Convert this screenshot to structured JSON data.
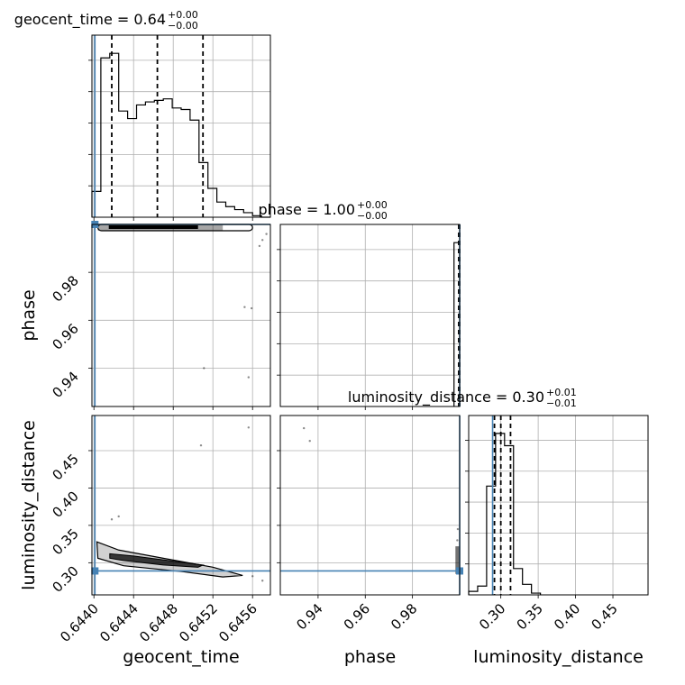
{
  "chart_data": {
    "type": "corner",
    "parameters": [
      "geocent_time",
      "phase",
      "luminosity_distance"
    ],
    "titles": {
      "geocent_time": {
        "label": "geocent_time",
        "median": "0.64",
        "plus": "+0.00",
        "minus": "−0.00"
      },
      "phase": {
        "label": "phase",
        "median": "1.00",
        "plus": "+0.00",
        "minus": "−0.00"
      },
      "luminosity_distance": {
        "label": "luminosity_distance",
        "median": "0.30",
        "plus": "+0.01",
        "minus": "−0.01"
      }
    },
    "xlabels": [
      "geocent_time",
      "phase",
      "luminosity_distance"
    ],
    "ylabels": [
      "",
      "phase",
      "luminosity_distance"
    ],
    "ranges": {
      "geocent_time": [
        0.64398,
        0.64578
      ],
      "phase": [
        0.924,
        1.0
      ],
      "luminosity_distance": [
        0.257,
        0.497
      ]
    },
    "ticks": {
      "geocent_time": [
        "0.6440",
        "0.6444",
        "0.6448",
        "0.6452",
        "0.6456"
      ],
      "phase": [
        "0.94",
        "0.96",
        "0.98"
      ],
      "luminosity_distance": [
        "0.30",
        "0.35",
        "0.40",
        "0.45"
      ]
    },
    "truths": {
      "geocent_time": 0.64401,
      "phase": 1.0,
      "luminosity_distance": 0.289
    },
    "marginal_geocent_time": {
      "bin_edges": [
        0.64398,
        0.64407,
        0.64416,
        0.64425,
        0.64434,
        0.64443,
        0.64452,
        0.64461,
        0.6447,
        0.64479,
        0.64488,
        0.64497,
        0.64506,
        0.64515,
        0.64524,
        0.64533,
        0.64542,
        0.64551,
        0.6456,
        0.64569,
        0.64578
      ],
      "counts": [
        0.17,
        1.05,
        1.08,
        0.7,
        0.65,
        0.74,
        0.76,
        0.77,
        0.78,
        0.72,
        0.71,
        0.64,
        0.36,
        0.19,
        0.1,
        0.07,
        0.05,
        0.03,
        0.01,
        0.0
      ],
      "quantiles": [
        0.64418,
        0.64464,
        0.6451
      ]
    },
    "marginal_phase": {
      "bin_edges": [
        0.9976,
        0.9988,
        1.0
      ],
      "counts": [
        1.0,
        1.0
      ],
      "quantiles": [
        0.9996,
        0.9998,
        1.0
      ]
    },
    "marginal_luminosity_distance": {
      "bin_edges": [
        0.257,
        0.269,
        0.281,
        0.293,
        0.305,
        0.317,
        0.329,
        0.341,
        0.353
      ],
      "counts": [
        0.02,
        0.05,
        0.62,
        0.92,
        0.85,
        0.15,
        0.06,
        0.01
      ],
      "quantiles": [
        0.2915,
        0.3,
        0.313
      ]
    },
    "scatter_geocent_phase": [
      {
        "x": 0.64552,
        "y": 0.9655
      },
      {
        "x": 0.64559,
        "y": 0.965
      },
      {
        "x": 0.64511,
        "y": 0.94
      },
      {
        "x": 0.64556,
        "y": 0.9362
      },
      {
        "x": 0.64567,
        "y": 0.991
      },
      {
        "x": 0.6457,
        "y": 0.9935
      },
      {
        "x": 0.64574,
        "y": 0.996
      }
    ],
    "scatter_geocent_distance": [
      {
        "x": 0.64508,
        "y": 0.457
      },
      {
        "x": 0.64556,
        "y": 0.481
      },
      {
        "x": 0.64418,
        "y": 0.358
      },
      {
        "x": 0.64425,
        "y": 0.362
      },
      {
        "x": 0.6456,
        "y": 0.282
      },
      {
        "x": 0.6457,
        "y": 0.276
      }
    ],
    "scatter_phase_distance": [
      {
        "x": 0.934,
        "y": 0.48
      },
      {
        "x": 0.9365,
        "y": 0.463
      },
      {
        "x": 0.999,
        "y": 0.33
      },
      {
        "x": 0.9992,
        "y": 0.345
      }
    ],
    "grid": true
  }
}
